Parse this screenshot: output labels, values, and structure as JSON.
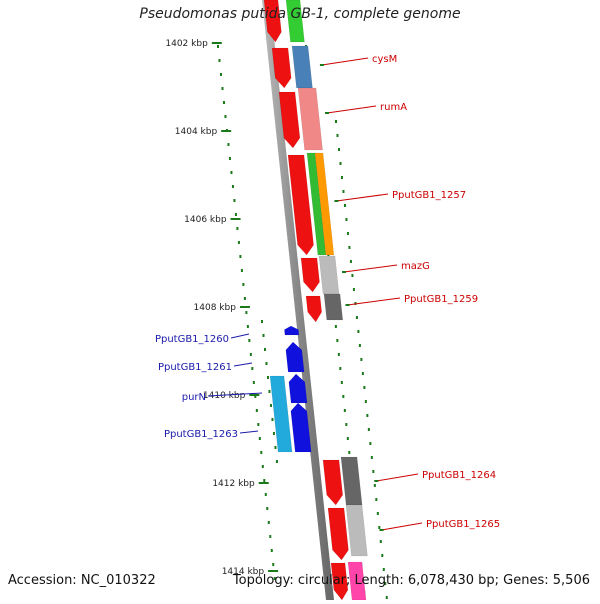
{
  "title": "Pseudomonas putida GB-1, complete genome",
  "accession": "Accession: NC_010322",
  "topology": "Topology: circular; Length: 6,078,430 bp; Genes: 5,506",
  "colors": {
    "forward_label": "#cc0000",
    "reverse_label": "#1a1aaa",
    "tick": "#1a7a1a",
    "backbone": "#777777"
  },
  "ticks": [
    "1402 kbp",
    "1404 kbp",
    "1406 kbp",
    "1408 kbp",
    "1410 kbp",
    "1412 kbp",
    "1414 kbp"
  ],
  "forward_labels": [
    "cysM",
    "rumA",
    "PputGB1_1257",
    "mazG",
    "PputGB1_1259",
    "PputGB1_1264",
    "PputGB1_1265"
  ],
  "reverse_labels": [
    "PputGB1_1260",
    "PputGB1_1261",
    "purN",
    "PputGB1_1263"
  ]
}
